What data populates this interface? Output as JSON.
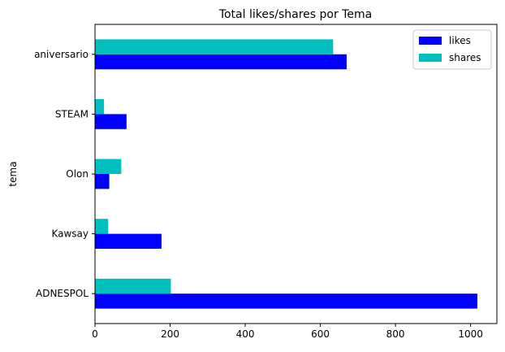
{
  "chart_data": {
    "type": "bar",
    "orientation": "horizontal",
    "title": "Total likes/shares por Tema",
    "xlabel": "",
    "ylabel": "tema",
    "categories": [
      "ADNESPOL",
      "Kawsay",
      "Olon",
      "STEAM",
      "aniversario"
    ],
    "series": [
      {
        "name": "likes",
        "values": [
          1018,
          177,
          38,
          84,
          670
        ],
        "color": "#0000ff"
      },
      {
        "name": "shares",
        "values": [
          202,
          35,
          70,
          24,
          634
        ],
        "color": "#00bfbf"
      }
    ],
    "xlim": [
      0,
      1070
    ],
    "xticks": [
      0,
      200,
      400,
      600,
      800,
      1000
    ],
    "grid": false,
    "legend_position": "top-right"
  }
}
